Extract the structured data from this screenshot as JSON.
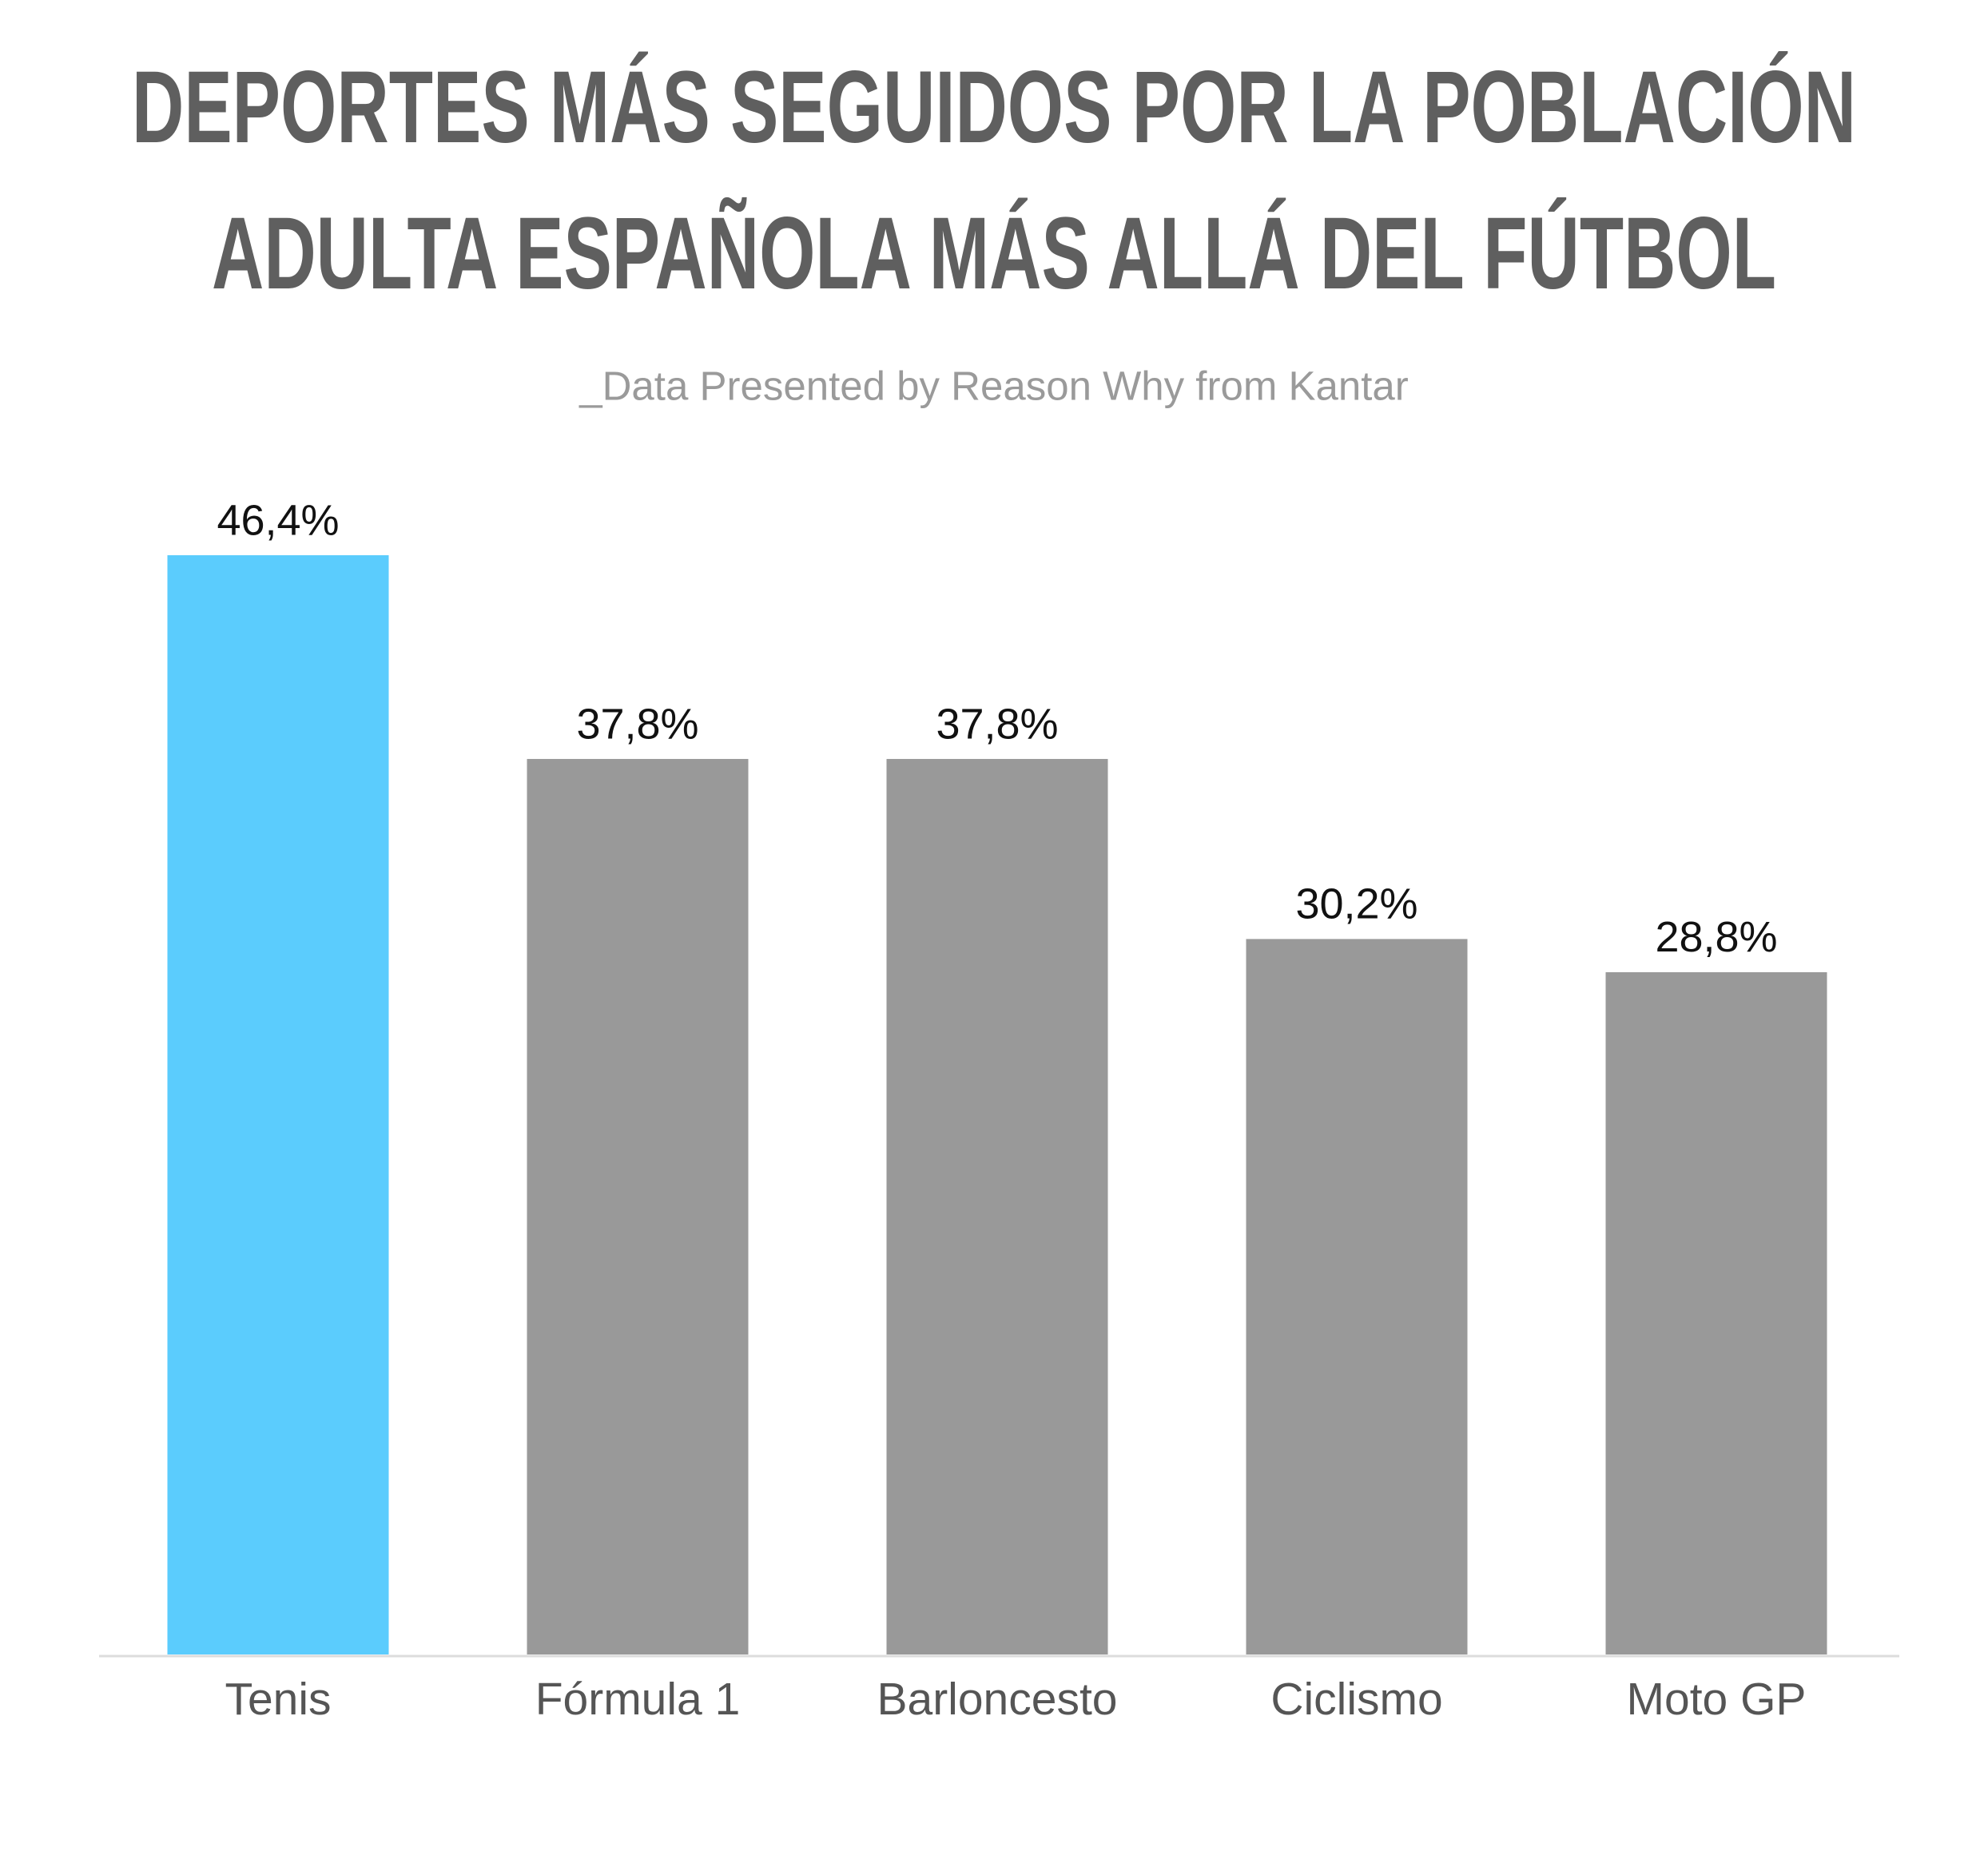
{
  "chart_data": {
    "type": "bar",
    "title": [
      "DEPORTES MÁS SEGUIDOS POR LA POBLACIÓN",
      "ADULTA ESPAÑOLA MÁS ALLÁ DEL FÚTBOL"
    ],
    "subtitle": "_Data Presented by Reason Why from Kantar",
    "categories": [
      "Tenis",
      "Fórmula 1",
      "Barloncesto",
      "Ciclismo",
      "Moto GP"
    ],
    "values": [
      46.4,
      37.8,
      37.8,
      30.2,
      28.8
    ],
    "value_labels": [
      "46,4%",
      "37,8%",
      "37,8%",
      "30,2%",
      "28,8%"
    ],
    "colors": [
      "#5bccfd",
      "#999999",
      "#999999",
      "#999999",
      "#999999"
    ]
  }
}
